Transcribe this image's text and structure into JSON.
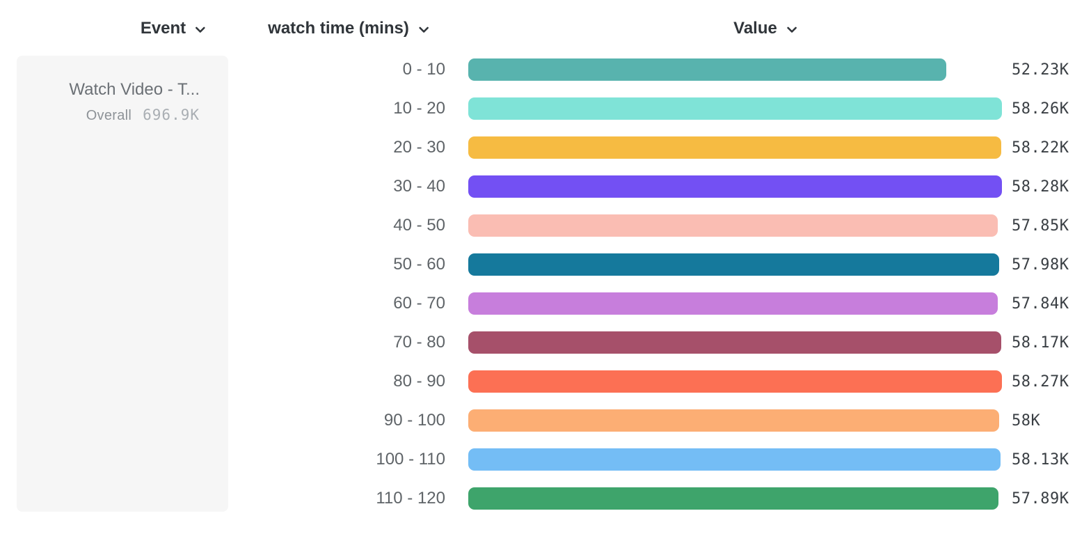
{
  "header": {
    "event": {
      "label": "Event"
    },
    "breakdown": {
      "label": "watch time (mins)"
    },
    "value": {
      "label": "Value"
    }
  },
  "legend": {
    "event_name": "Watch Video - T...",
    "overall_label": "Overall",
    "overall_value": "696.9K"
  },
  "chart_data": {
    "type": "bar",
    "orientation": "horizontal",
    "title": "",
    "xlabel": "Value",
    "ylabel": "watch time (mins)",
    "categories": [
      "0 - 10",
      "10 - 20",
      "20 - 30",
      "30 - 40",
      "40 - 50",
      "50 - 60",
      "60 - 70",
      "70 - 80",
      "80 - 90",
      "90 - 100",
      "100 - 110",
      "110 - 120"
    ],
    "values": [
      52230,
      58260,
      58220,
      58280,
      57850,
      57980,
      57840,
      58170,
      58270,
      58000,
      58130,
      57890
    ],
    "value_labels": [
      "52.23K",
      "58.26K",
      "58.22K",
      "58.28K",
      "57.85K",
      "57.98K",
      "57.84K",
      "58.17K",
      "58.27K",
      "58K",
      "58.13K",
      "57.89K"
    ],
    "bar_colors": [
      "#58b3ae",
      "#7fe3d7",
      "#f6bb42",
      "#7350f3",
      "#fabdb3",
      "#15799c",
      "#c77edc",
      "#a6506a",
      "#fc7054",
      "#fcae74",
      "#74bdf5",
      "#3ea46b"
    ],
    "xlim": [
      0,
      58280
    ],
    "grid": false,
    "legend_position": "left",
    "colors": {
      "header_text": "#30353a",
      "category_text": "#5f6468",
      "value_text": "#3a3f44",
      "card_background": "#f6f6f6"
    }
  },
  "icons": {
    "event_chevron": "chevron-down-icon",
    "breakdown_chevron": "chevron-down-icon",
    "value_chevron": "chevron-down-icon"
  }
}
